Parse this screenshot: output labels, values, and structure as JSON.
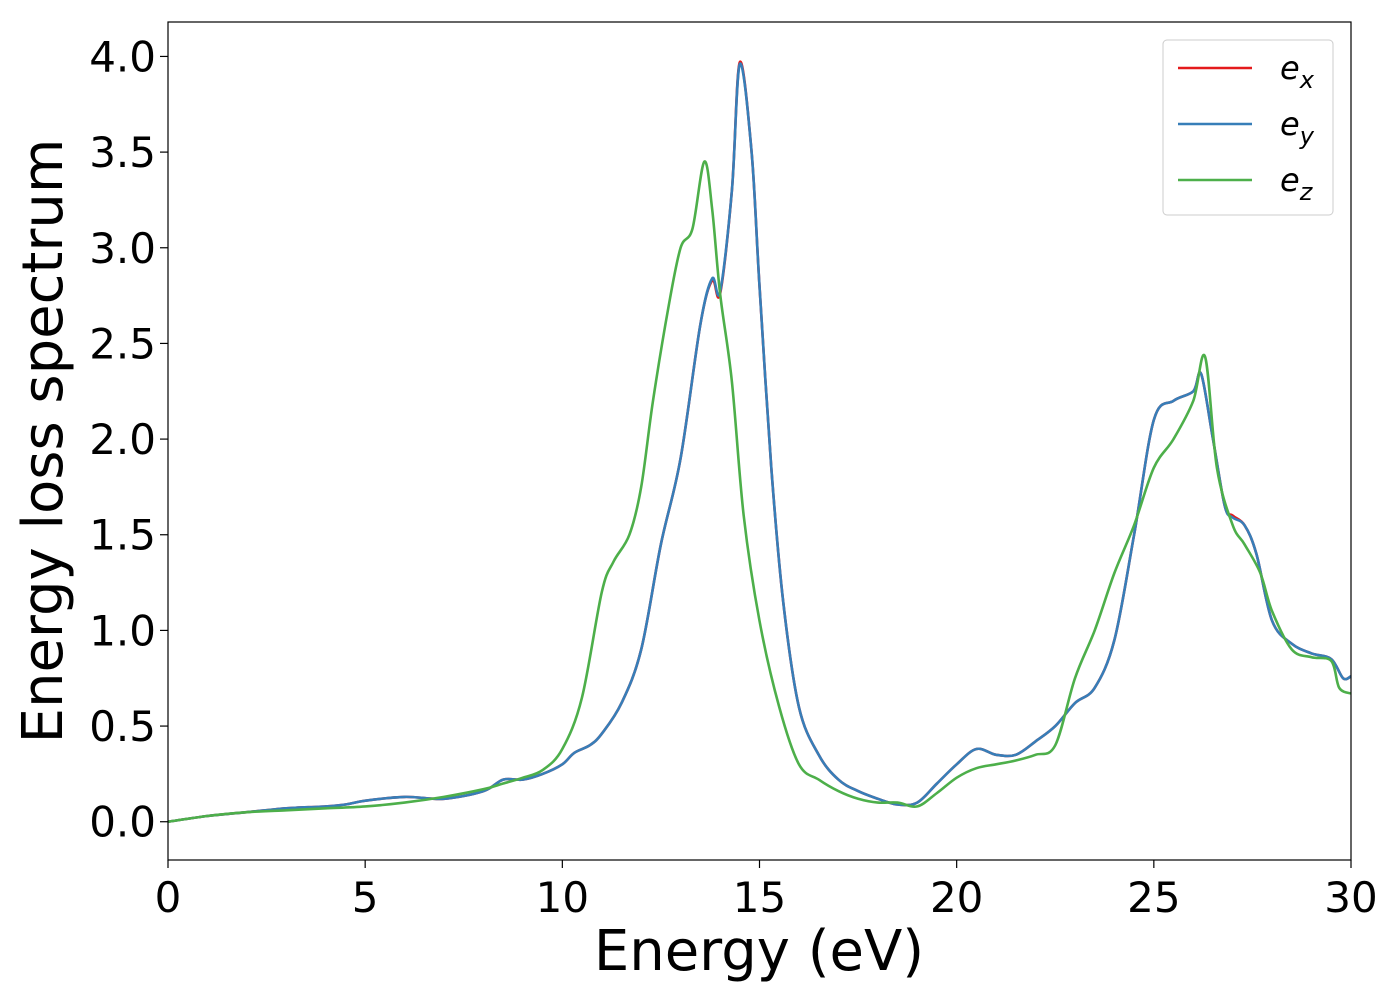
{
  "chart_data": {
    "type": "line",
    "xlabel": "Energy (eV)",
    "ylabel": "Energy loss spectrum",
    "xlim": [
      0,
      30
    ],
    "ylim": [
      -0.2,
      4.18
    ],
    "xticks": [
      0,
      5,
      10,
      15,
      20,
      25,
      30
    ],
    "yticks": [
      0.0,
      0.5,
      1.0,
      1.5,
      2.0,
      2.5,
      3.0,
      3.5,
      4.0
    ],
    "xtick_labels": [
      "0",
      "5",
      "10",
      "15",
      "20",
      "25",
      "30"
    ],
    "ytick_labels": [
      "0.0",
      "0.5",
      "1.0",
      "1.5",
      "2.0",
      "2.5",
      "3.0",
      "3.5",
      "4.0"
    ],
    "grid": false,
    "legend_position": "top-right",
    "series": [
      {
        "name": "ex",
        "subscript": "x",
        "color": "#e41a1c",
        "x": [
          0,
          1,
          2,
          3,
          4,
          4.5,
          5,
          6,
          7,
          8,
          8.5,
          9,
          9.5,
          10,
          10.3,
          10.7,
          11,
          11.5,
          12,
          12.5,
          13,
          13.5,
          13.8,
          14,
          14.3,
          14.5,
          14.8,
          15,
          15.3,
          15.6,
          16,
          16.5,
          17,
          17.5,
          18,
          18.5,
          19,
          19.5,
          20,
          20.5,
          21,
          21.5,
          22,
          22.5,
          23,
          23.5,
          24,
          24.5,
          25,
          25.5,
          26,
          26.2,
          26.5,
          26.8,
          27,
          27.3,
          27.6,
          28,
          28.5,
          29,
          29.5,
          29.8,
          30
        ],
        "y": [
          0.0,
          0.03,
          0.05,
          0.07,
          0.08,
          0.09,
          0.11,
          0.13,
          0.12,
          0.16,
          0.22,
          0.22,
          0.25,
          0.3,
          0.36,
          0.4,
          0.46,
          0.62,
          0.9,
          1.45,
          1.9,
          2.6,
          2.83,
          2.76,
          3.3,
          3.97,
          3.5,
          2.8,
          1.85,
          1.15,
          0.6,
          0.35,
          0.22,
          0.16,
          0.12,
          0.09,
          0.1,
          0.2,
          0.3,
          0.38,
          0.35,
          0.35,
          0.42,
          0.5,
          0.62,
          0.7,
          0.95,
          1.5,
          2.1,
          2.2,
          2.25,
          2.34,
          2.0,
          1.65,
          1.6,
          1.55,
          1.4,
          1.05,
          0.93,
          0.88,
          0.85,
          0.75,
          0.76
        ]
      },
      {
        "name": "ey",
        "subscript": "y",
        "color": "#377eb8",
        "x": [
          0,
          1,
          2,
          3,
          4,
          4.5,
          5,
          6,
          7,
          8,
          8.5,
          9,
          9.5,
          10,
          10.3,
          10.7,
          11,
          11.5,
          12,
          12.5,
          13,
          13.5,
          13.8,
          14,
          14.3,
          14.5,
          14.8,
          15,
          15.3,
          15.6,
          16,
          16.5,
          17,
          17.5,
          18,
          18.5,
          19,
          19.5,
          20,
          20.5,
          21,
          21.5,
          22,
          22.5,
          23,
          23.5,
          24,
          24.5,
          25,
          25.5,
          26,
          26.2,
          26.5,
          26.8,
          27,
          27.3,
          27.6,
          28,
          28.5,
          29,
          29.5,
          29.8,
          30
        ],
        "y": [
          0.0,
          0.03,
          0.05,
          0.07,
          0.08,
          0.09,
          0.11,
          0.13,
          0.12,
          0.16,
          0.22,
          0.22,
          0.25,
          0.3,
          0.36,
          0.4,
          0.46,
          0.62,
          0.9,
          1.45,
          1.9,
          2.6,
          2.84,
          2.77,
          3.3,
          3.96,
          3.5,
          2.8,
          1.85,
          1.15,
          0.6,
          0.35,
          0.22,
          0.16,
          0.12,
          0.09,
          0.1,
          0.2,
          0.3,
          0.38,
          0.35,
          0.35,
          0.42,
          0.5,
          0.62,
          0.7,
          0.95,
          1.5,
          2.1,
          2.2,
          2.25,
          2.34,
          2.0,
          1.65,
          1.59,
          1.55,
          1.4,
          1.05,
          0.93,
          0.88,
          0.85,
          0.75,
          0.76
        ]
      },
      {
        "name": "ez",
        "subscript": "z",
        "color": "#4daf4a",
        "x": [
          0,
          1,
          2,
          3,
          4,
          5,
          6,
          7,
          8,
          8.5,
          9,
          9.5,
          10,
          10.5,
          11,
          11.3,
          11.7,
          12,
          12.3,
          12.7,
          13,
          13.3,
          13.6,
          13.8,
          14,
          14.3,
          14.6,
          15,
          15.5,
          16,
          16.5,
          17,
          17.5,
          18,
          18.5,
          19,
          19.5,
          20,
          20.5,
          21,
          21.5,
          22,
          22.5,
          23,
          23.5,
          24,
          24.5,
          25,
          25.5,
          26,
          26.3,
          26.6,
          27,
          27.3,
          27.7,
          28,
          28.5,
          29,
          29.5,
          29.7,
          30
        ],
        "y": [
          0.0,
          0.03,
          0.05,
          0.06,
          0.07,
          0.08,
          0.1,
          0.13,
          0.17,
          0.2,
          0.23,
          0.27,
          0.38,
          0.65,
          1.2,
          1.36,
          1.5,
          1.75,
          2.2,
          2.7,
          3.0,
          3.1,
          3.45,
          3.2,
          2.76,
          2.3,
          1.6,
          1.05,
          0.6,
          0.3,
          0.22,
          0.16,
          0.12,
          0.1,
          0.1,
          0.08,
          0.15,
          0.23,
          0.28,
          0.3,
          0.32,
          0.35,
          0.4,
          0.75,
          1.0,
          1.3,
          1.55,
          1.85,
          2.0,
          2.2,
          2.43,
          1.85,
          1.55,
          1.45,
          1.3,
          1.1,
          0.9,
          0.86,
          0.84,
          0.7,
          0.67
        ]
      }
    ]
  }
}
